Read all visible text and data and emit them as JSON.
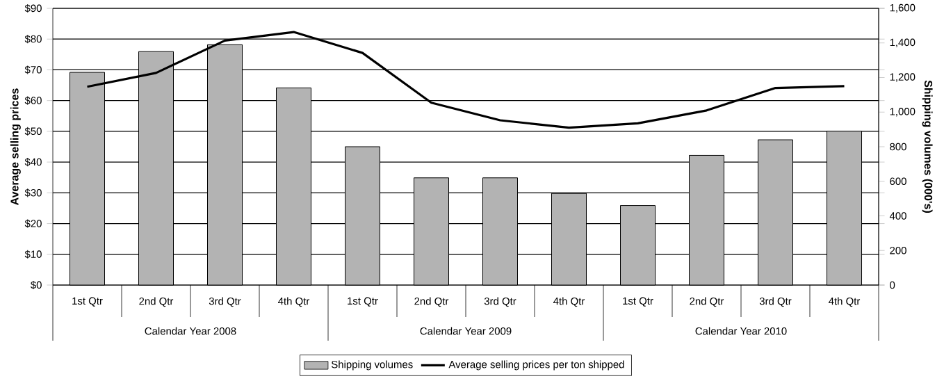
{
  "chart_data": {
    "type": "bar",
    "ylabel": "Average selling prices",
    "y2label": "Shipping volumes (000's)",
    "categories": [
      "1st Qtr",
      "2nd Qtr",
      "3rd Qtr",
      "4th Qtr",
      "1st Qtr",
      "2nd Qtr",
      "3rd Qtr",
      "4th Qtr",
      "1st Qtr",
      "2nd Qtr",
      "3rd Qtr",
      "4th Qtr"
    ],
    "annotations": [
      "Calendar Year 2008",
      "Calendar Year 2009",
      "Calendar Year 2010"
    ],
    "series": [
      {
        "name": "Shipping volumes",
        "axis": "y2",
        "color": "#b3b3b3",
        "values": [
          1230,
          1350,
          1390,
          1140,
          800,
          620,
          620,
          530,
          460,
          750,
          840,
          890
        ]
      },
      {
        "name": "Average selling prices per ton shipped",
        "type": "line",
        "color": "#000000",
        "marker": "none",
        "line_style": "solid",
        "values": [
          64.5,
          69,
          79.5,
          82.3,
          75.5,
          59.3,
          53.6,
          51.2,
          52.6,
          56.8,
          64.1,
          64.7
        ]
      }
    ],
    "ylim": [
      0,
      90
    ],
    "yticks": [
      {
        "value": 0,
        "label": "$0"
      },
      {
        "value": 10,
        "label": "$10"
      },
      {
        "value": 20,
        "label": "$20"
      },
      {
        "value": 30,
        "label": "$30"
      },
      {
        "value": 40,
        "label": "$40"
      },
      {
        "value": 50,
        "label": "$50"
      },
      {
        "value": 60,
        "label": "$60"
      },
      {
        "value": 70,
        "label": "$70"
      },
      {
        "value": 80,
        "label": "$80"
      },
      {
        "value": 90,
        "label": "$90"
      }
    ],
    "y2lim": [
      0,
      1600
    ],
    "y2ticks": [
      0,
      200,
      400,
      600,
      800,
      {
        "value": 1000,
        "label": "1,000"
      },
      {
        "value": 1200,
        "label": "1,200"
      },
      {
        "value": 1400,
        "label": "1,400"
      },
      {
        "value": 1600,
        "label": "1,600"
      }
    ],
    "grid": "y",
    "legend": "bottom"
  }
}
